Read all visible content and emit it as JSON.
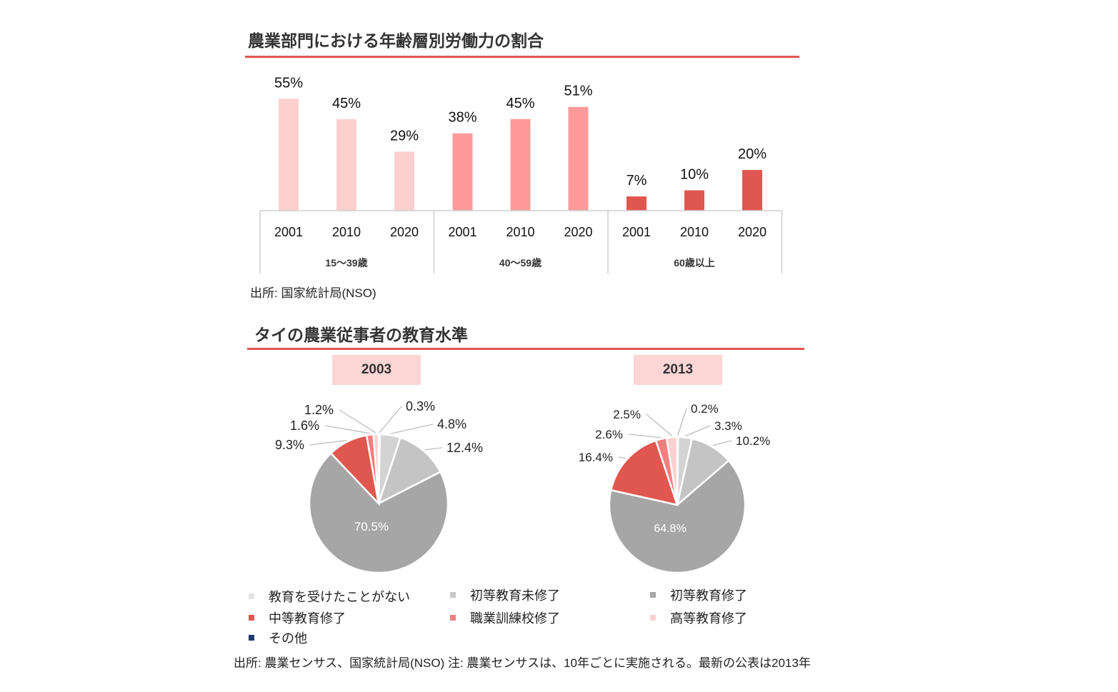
{
  "section1": {
    "title": "農業部門における年齢層別労働力の割合",
    "source": "出所: 国家統計局(NSO)"
  },
  "section2": {
    "title": "タイの農業従事者の教育水準",
    "source": "出所: 農業センサス、国家統計局(NSO) 注: 農業センサスは、10年ごとに実施される。最新の公表は2013年"
  },
  "colors": {
    "accent": "#e0574f",
    "group_bar": [
      "#fdcfcf",
      "#ff9a9a",
      "#e0574f"
    ]
  },
  "chart_data": [
    {
      "type": "bar",
      "groups": [
        {
          "name": "15〜39歳",
          "categories": [
            "2001",
            "2010",
            "2020"
          ],
          "values": [
            55,
            45,
            29
          ],
          "labels": [
            "55%",
            "45%",
            "29%"
          ]
        },
        {
          "name": "40〜59歳",
          "categories": [
            "2001",
            "2010",
            "2020"
          ],
          "values": [
            38,
            45,
            51
          ],
          "labels": [
            "38%",
            "45%",
            "51%"
          ]
        },
        {
          "name": "60歳以上",
          "categories": [
            "2001",
            "2010",
            "2020"
          ],
          "values": [
            7,
            10,
            20
          ],
          "labels": [
            "7%",
            "10%",
            "20%"
          ]
        }
      ],
      "ylim": [
        0,
        100
      ]
    },
    {
      "type": "pie",
      "title": "2003",
      "slices": [
        {
          "name": "教育を受けたことがない",
          "value": 0.3,
          "label": "0.3%",
          "color": "#e4e4e4"
        },
        {
          "name": "初等教育未修了",
          "value": 4.8,
          "label": "4.8%",
          "color": "#d3d3d3"
        },
        {
          "name": "初等教育修了",
          "value": 12.4,
          "label": "12.4%",
          "color": "#c4c4c4"
        },
        {
          "name": "中等教育修了",
          "value": 70.5,
          "label": "70.5%",
          "color": "#a6a6a6"
        },
        {
          "name": "職業訓練校修了",
          "value": 9.3,
          "label": "9.3%",
          "color": "#e0574f"
        },
        {
          "name": "高等教育修了",
          "value": 1.6,
          "label": "1.6%",
          "color": "#f47e7e"
        },
        {
          "name": "その他",
          "value": 1.2,
          "label": "1.2%",
          "color": "#fdd0d0"
        }
      ]
    },
    {
      "type": "pie",
      "title": "2013",
      "slices": [
        {
          "name": "教育を受けたことがない",
          "value": 0.2,
          "label": "0.2%",
          "color": "#e4e4e4"
        },
        {
          "name": "初等教育未修了",
          "value": 3.3,
          "label": "3.3%",
          "color": "#d3d3d3"
        },
        {
          "name": "初等教育修了",
          "value": 10.2,
          "label": "10.2%",
          "color": "#c4c4c4"
        },
        {
          "name": "中等教育修了",
          "value": 64.8,
          "label": "64.8%",
          "color": "#a6a6a6"
        },
        {
          "name": "職業訓練校修了",
          "value": 16.4,
          "label": "16.4%",
          "color": "#e0574f"
        },
        {
          "name": "高等教育修了",
          "value": 2.6,
          "label": "2.6%",
          "color": "#f47e7e"
        },
        {
          "name": "その他",
          "value": 2.5,
          "label": "2.5%",
          "color": "#fdd0d0"
        }
      ]
    }
  ],
  "legend": [
    {
      "label": "教育を受けたことがない",
      "color": "#e4e4e4"
    },
    {
      "label": "初等教育未修了",
      "color": "#c8c8c8"
    },
    {
      "label": "初等教育修了",
      "color": "#a6a6a6"
    },
    {
      "label": "中等教育修了",
      "color": "#e0574f"
    },
    {
      "label": "職業訓練校修了",
      "color": "#f47e7e"
    },
    {
      "label": "高等教育修了",
      "color": "#fdd0d0"
    },
    {
      "label": "その他",
      "color": "#1f3a6e"
    }
  ]
}
